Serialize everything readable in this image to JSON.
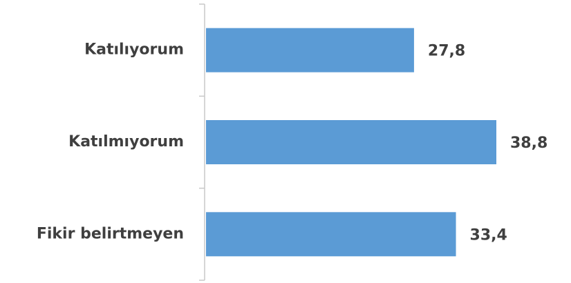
{
  "chart_data": {
    "type": "bar",
    "orientation": "horizontal",
    "categories": [
      "Katılıyorum",
      "Katılmıyorum",
      "Fikir belirtmeyen"
    ],
    "values": [
      27.8,
      38.8,
      33.4
    ],
    "value_labels": [
      "27,8",
      "38,8",
      "33,4"
    ],
    "title": "",
    "xlabel": "",
    "ylabel": "",
    "xlim": [
      0,
      40
    ],
    "grid": false,
    "legend": "none",
    "bar_color": "#5b9bd5",
    "text_color": "#3f3f3f",
    "axis_color": "#c8c8c8"
  }
}
